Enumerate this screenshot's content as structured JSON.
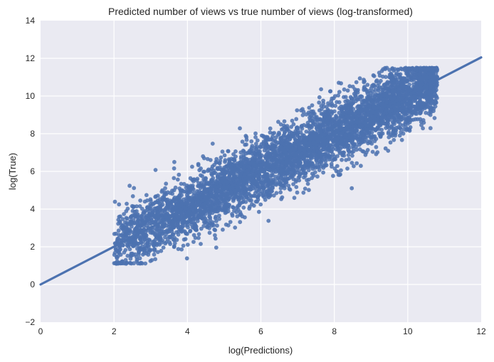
{
  "chart_data": {
    "type": "scatter",
    "title": "Predicted number of views vs true number of views (log-transformed)",
    "xlabel": "log(Predictions)",
    "ylabel": "log(True)",
    "xlim": [
      0,
      12
    ],
    "ylim": [
      -2,
      14
    ],
    "xticks": [
      "0",
      "2",
      "4",
      "6",
      "8",
      "10",
      "12"
    ],
    "yticks": [
      "−2",
      "0",
      "2",
      "4",
      "6",
      "8",
      "10",
      "12",
      "14"
    ],
    "grid": true,
    "background_color": "#eaeaf2",
    "grid_color": "#ffffff",
    "point_color": "#4c72b0",
    "series": [
      {
        "kind": "points",
        "x_range": [
          2.0,
          10.8
        ],
        "y_range": [
          1.1,
          11.5
        ],
        "trend": "y ≈ x",
        "spread_sd": 0.85,
        "point_count_shown": 5000
      },
      {
        "kind": "fit-line",
        "x": [
          0,
          12
        ],
        "y": [
          0,
          12.05
        ]
      }
    ]
  }
}
